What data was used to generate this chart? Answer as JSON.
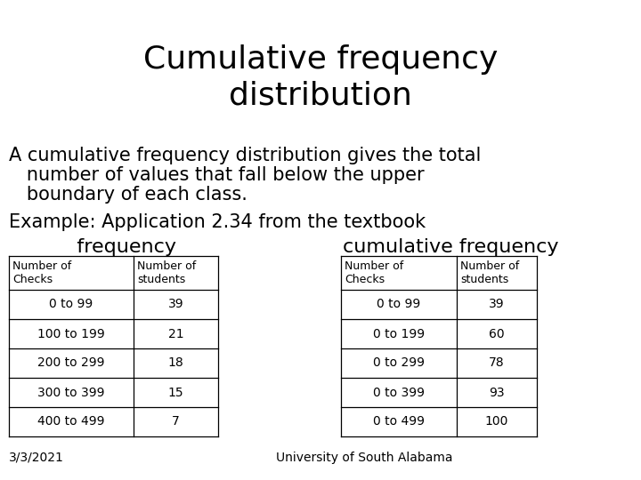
{
  "title": "Cumulative frequency\ndistribution",
  "description_lines": [
    "A cumulative frequency distribution gives the total",
    "   number of values that fall below the upper",
    "   boundary of each class."
  ],
  "example_label": "Example: Application 2.34 from the textbook",
  "freq_label": "   frequency",
  "cum_freq_label": "cumulative frequency",
  "freq_table": {
    "headers": [
      "Number of\nChecks",
      "Number of\nstudents"
    ],
    "rows": [
      [
        "0 to 99",
        "39"
      ],
      [
        "100 to 199",
        "21"
      ],
      [
        "200 to 299",
        "18"
      ],
      [
        "300 to 399",
        "15"
      ],
      [
        "400 to 499",
        "7"
      ]
    ]
  },
  "cum_table": {
    "headers": [
      "Number of\nChecks",
      "Number of\nstudents"
    ],
    "rows": [
      [
        "0 to 99",
        "39"
      ],
      [
        "0 to 199",
        "60"
      ],
      [
        "0 to 299",
        "78"
      ],
      [
        "0 to 399",
        "93"
      ],
      [
        "0 to 499",
        "100"
      ]
    ]
  },
  "footer_left": "3/3/2021",
  "footer_center": "University of South Alabama",
  "bg_color": "#ffffff",
  "text_color": "#000000",
  "title_fontsize": 26,
  "body_fontsize": 15,
  "label_fontsize": 16,
  "table_fontsize": 10,
  "small_fontsize": 10,
  "table_header_fontsize": 9
}
